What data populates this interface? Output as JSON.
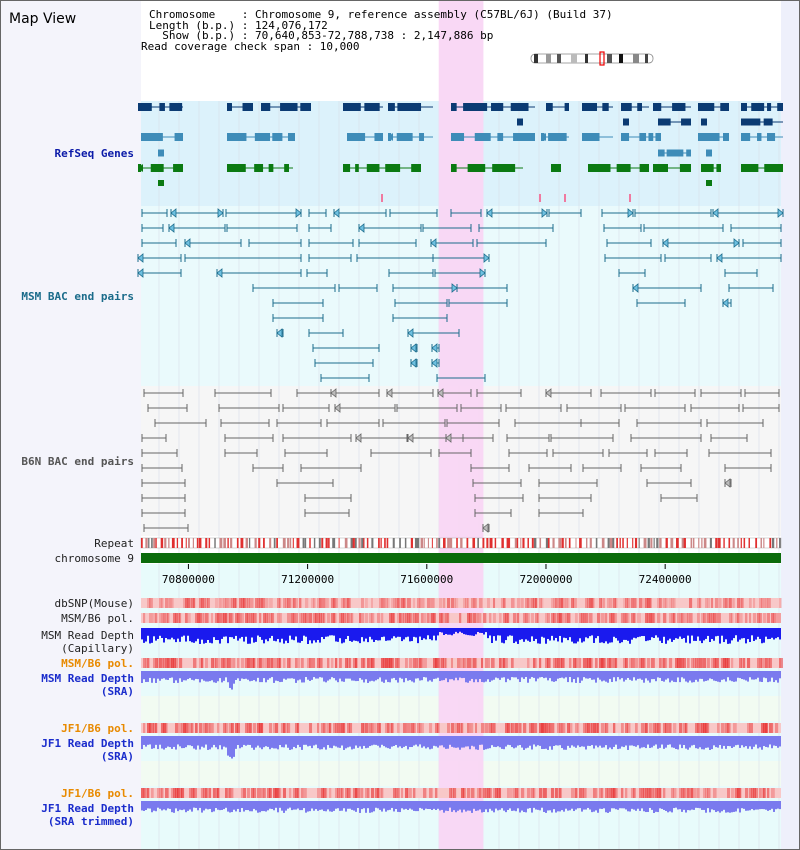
{
  "header": {
    "title": "Map View",
    "info_lines": [
      "Chromosome    : Chromosome 9, reference assembly (C57BL/6J) (Build 37)",
      "Length (b.p.) : 124,076,172",
      "  Show (b.p.) : 70,640,853-72,788,738 : 2,147,886 bp",
      "Read coverage check span : 10,000"
    ]
  },
  "tracks": {
    "refseq": "RefSeq Genes",
    "msm_bac": "MSM BAC end pairs",
    "b6n_bac": "B6N BAC end pairs",
    "repeat": "Repeat",
    "chromosome": "chromosome 9",
    "dbsnp": "dbSNP(Mouse)",
    "msm_b6_pol_1": "MSM/B6 pol.",
    "msm_read_depth_cap_1": "MSM Read Depth",
    "msm_read_depth_cap_2": "(Capillary)",
    "msm_b6_pol_2": "MSM/B6 pol.",
    "msm_read_depth_sra_1": "MSM Read Depth",
    "msm_read_depth_sra_2": "(SRA)",
    "jf1_b6_pol_1": "JF1/B6 pol.",
    "jf1_read_depth_sra_1": "JF1 Read Depth",
    "jf1_read_depth_sra_2": "(SRA)",
    "jf1_b6_pol_2": "JF1/B6 pol.",
    "jf1_read_depth_trim_1": "JF1 Read Depth",
    "jf1_read_depth_trim_2": "(SRA trimmed)"
  },
  "axis": {
    "range_bp": [
      70640853,
      72788738
    ],
    "ticks": [
      {
        "pos": 70800000,
        "label": "70800000"
      },
      {
        "pos": 71200000,
        "label": "71200000"
      },
      {
        "pos": 71600000,
        "label": "71600000"
      },
      {
        "pos": 72000000,
        "label": "72000000"
      },
      {
        "pos": 72400000,
        "label": "72400000"
      }
    ],
    "highlight_bp": [
      71640000,
      71790000
    ]
  },
  "colors": {
    "refseq_dark": "#0b3b73",
    "refseq_mid": "#3e8cb8",
    "refseq_green": "#0b7a12",
    "msm_line": "#1c6c8c",
    "b6n_line": "#666666",
    "highlight": "#f9d6f4",
    "chromosome": "#0b6b0b",
    "depth_blue": "#1a1aee",
    "depth_light": "#7a7aee"
  }
}
